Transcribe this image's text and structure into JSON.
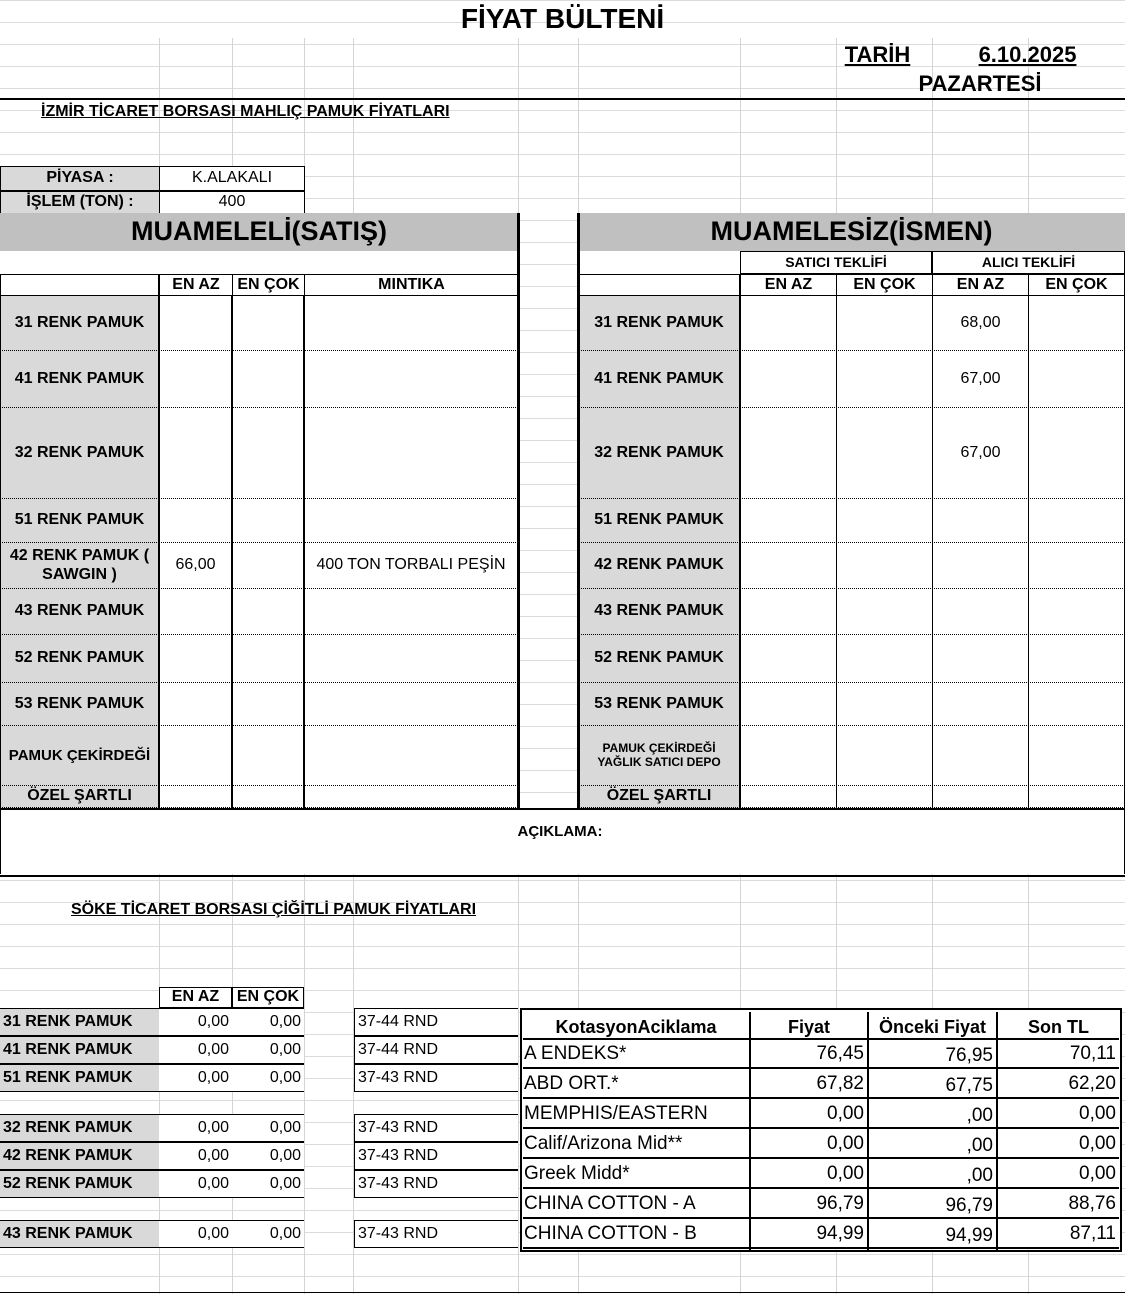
{
  "header": {
    "title": "FİYAT BÜLTENİ",
    "date_label": "TARİH",
    "date": "6.10.2025",
    "day": "PAZARTESİ"
  },
  "izmir": {
    "heading": "İZMİR  TİCARET BORSASI   MAHLIÇ  PAMUK FİYATLARI",
    "piyasa_label": "PİYASA :",
    "piyasa_value": "K.ALAKALI",
    "islem_label": "İŞLEM (TON) :",
    "islem_value": "400",
    "left": {
      "title": "MUAMELELİ(SATIŞ)",
      "cols": [
        "EN AZ",
        "EN ÇOK",
        "MINTIKA"
      ],
      "rows": [
        {
          "name": "31 RENK PAMUK",
          "en_az": "",
          "en_cok": "",
          "mintika": ""
        },
        {
          "name": "41 RENK PAMUK",
          "en_az": "",
          "en_cok": "",
          "mintika": ""
        },
        {
          "name": "32 RENK PAMUK",
          "en_az": "",
          "en_cok": "",
          "mintika": ""
        },
        {
          "name": "51 RENK PAMUK",
          "en_az": "",
          "en_cok": "",
          "mintika": ""
        },
        {
          "name": "42 RENK PAMUK ( SAWGIN )",
          "en_az": "66,00",
          "en_cok": "",
          "mintika": "400 TON TORBALI PEŞİN"
        },
        {
          "name": "43 RENK PAMUK",
          "en_az": "",
          "en_cok": "",
          "mintika": ""
        },
        {
          "name": "52 RENK PAMUK",
          "en_az": "",
          "en_cok": "",
          "mintika": ""
        },
        {
          "name": "53 RENK PAMUK",
          "en_az": "",
          "en_cok": "",
          "mintika": ""
        },
        {
          "name": "PAMUK ÇEKİRDEĞİ",
          "en_az": "",
          "en_cok": "",
          "mintika": ""
        },
        {
          "name": "ÖZEL ŞARTLI",
          "en_az": "",
          "en_cok": "",
          "mintika": ""
        }
      ]
    },
    "right": {
      "title": "MUAMELESİZ(İSMEN)",
      "satici_label": "SATICI TEKLİFİ",
      "alici_label": "ALICI TEKLİFİ",
      "cols": [
        "EN AZ",
        "EN ÇOK",
        "EN AZ",
        "EN ÇOK"
      ],
      "rows": [
        {
          "name": "31 RENK PAMUK",
          "s_az": "",
          "s_cok": "",
          "a_az": "68,00",
          "a_cok": ""
        },
        {
          "name": "41 RENK PAMUK",
          "s_az": "",
          "s_cok": "",
          "a_az": "67,00",
          "a_cok": ""
        },
        {
          "name": "32 RENK PAMUK",
          "s_az": "",
          "s_cok": "",
          "a_az": "67,00",
          "a_cok": ""
        },
        {
          "name": "51 RENK PAMUK",
          "s_az": "",
          "s_cok": "",
          "a_az": "",
          "a_cok": ""
        },
        {
          "name": "42 RENK PAMUK",
          "s_az": "",
          "s_cok": "",
          "a_az": "",
          "a_cok": ""
        },
        {
          "name": "43 RENK PAMUK",
          "s_az": "",
          "s_cok": "",
          "a_az": "",
          "a_cok": ""
        },
        {
          "name": "52 RENK PAMUK",
          "s_az": "",
          "s_cok": "",
          "a_az": "",
          "a_cok": ""
        },
        {
          "name": "53 RENK PAMUK",
          "s_az": "",
          "s_cok": "",
          "a_az": "",
          "a_cok": ""
        },
        {
          "name": "PAMUK ÇEKİRDEĞİ YAĞLIK SATICI DEPO",
          "s_az": "",
          "s_cok": "",
          "a_az": "",
          "a_cok": ""
        },
        {
          "name": "ÖZEL ŞARTLI",
          "s_az": "",
          "s_cok": "",
          "a_az": "",
          "a_cok": ""
        }
      ]
    },
    "aciklama": "AÇIKLAMA:"
  },
  "soke": {
    "heading": "SÖKE  TİCARET BORSASI ÇİĞİTLİ PAMUK FİYATLARI",
    "cols": [
      "EN AZ",
      "EN ÇOK"
    ],
    "rows": [
      {
        "name": "31 RENK PAMUK",
        "en_az": "0,00",
        "en_cok": "0,00",
        "rnd": "37-44 RND"
      },
      {
        "name": "41 RENK PAMUK",
        "en_az": "0,00",
        "en_cok": "0,00",
        "rnd": "37-44 RND"
      },
      {
        "name": "51 RENK PAMUK",
        "en_az": "0,00",
        "en_cok": "0,00",
        "rnd": "37-43 RND"
      },
      {
        "name": "32 RENK PAMUK",
        "en_az": "0,00",
        "en_cok": "0,00",
        "rnd": "37-43 RND"
      },
      {
        "name": "42 RENK PAMUK",
        "en_az": "0,00",
        "en_cok": "0,00",
        "rnd": "37-43 RND"
      },
      {
        "name": "52 RENK PAMUK",
        "en_az": "0,00",
        "en_cok": "0,00",
        "rnd": "37-43 RND"
      },
      {
        "name": "43 RENK PAMUK",
        "en_az": "0,00",
        "en_cok": "0,00",
        "rnd": "37-43 RND"
      }
    ]
  },
  "kotasyon": {
    "cols": [
      "KotasyonAciklama",
      "Fiyat",
      "Önceki Fiyat",
      "Son TL"
    ],
    "rows": [
      [
        "A ENDEKS*",
        "76,45",
        "76,95",
        "70,11"
      ],
      [
        "ABD ORT.*",
        "67,82",
        "67,75",
        "62,20"
      ],
      [
        "MEMPHIS/EASTERN",
        "0,00",
        ",00",
        "0,00"
      ],
      [
        "Calif/Arizona Mid**",
        "0,00",
        ",00",
        "0,00"
      ],
      [
        "Greek Midd*",
        "0,00",
        ",00",
        "0,00"
      ],
      [
        "CHINA COTTON - A",
        "96,79",
        "96,79",
        "88,76"
      ],
      [
        "CHINA COTTON - B",
        "94,99",
        "94,99",
        "87,11"
      ]
    ]
  }
}
